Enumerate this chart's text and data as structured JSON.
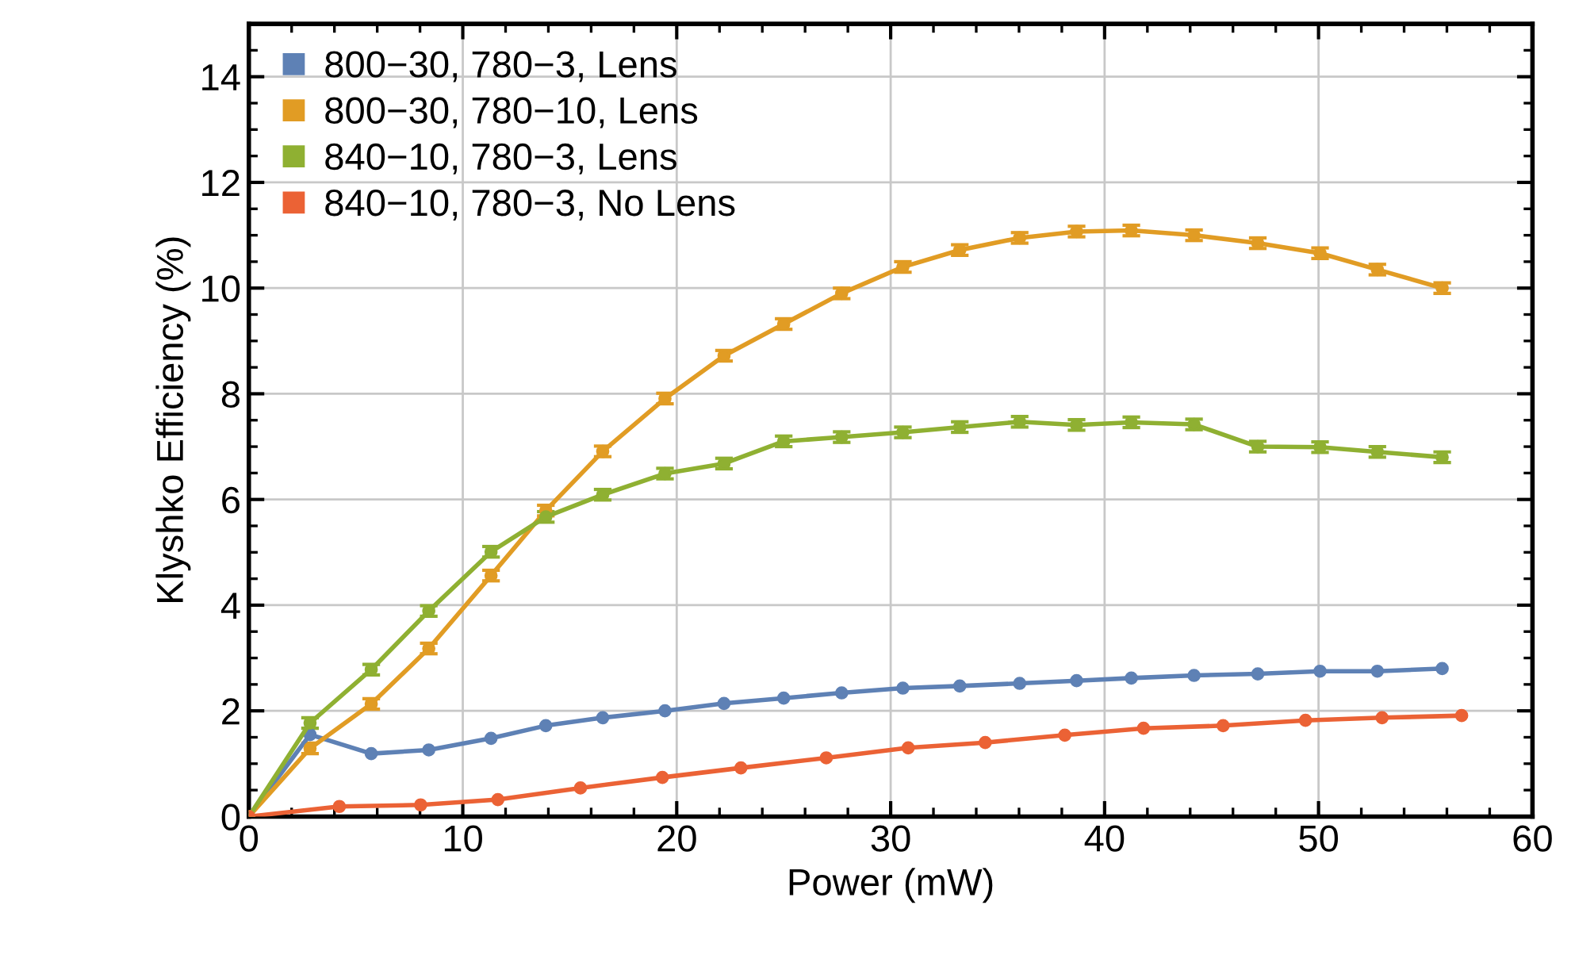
{
  "chart_data": {
    "type": "line",
    "xlabel": "Power (mW)",
    "ylabel": "Klyshko Efficiency (%)",
    "xlim": [
      0,
      60
    ],
    "xticks": [
      0,
      10,
      20,
      30,
      40,
      50,
      60
    ],
    "ylim": [
      0,
      15
    ],
    "yticks": [
      0,
      2,
      4,
      6,
      8,
      10,
      12,
      14
    ],
    "grid": true,
    "legend": "top left",
    "marker": "circle",
    "line_style": "solid",
    "series": [
      {
        "name": "800−30, 780−3, Lens",
        "color": "#5e81b5",
        "x": [
          0,
          2.86,
          5.72,
          8.41,
          11.32,
          13.88,
          16.54,
          19.45,
          22.21,
          25.0,
          27.71,
          30.57,
          33.23,
          36.03,
          38.69,
          41.25,
          44.18,
          47.16,
          50.07,
          52.75,
          55.78
        ],
        "values": [
          0,
          1.55,
          1.19,
          1.26,
          1.48,
          1.72,
          1.87,
          2.0,
          2.14,
          2.24,
          2.34,
          2.43,
          2.47,
          2.52,
          2.57,
          2.62,
          2.67,
          2.7,
          2.75,
          2.75,
          2.8
        ]
      },
      {
        "name": "800−30, 780−10, Lens",
        "color": "#e19c24",
        "x": [
          0,
          2.86,
          5.72,
          8.41,
          11.32,
          13.88,
          16.54,
          19.45,
          22.21,
          25.0,
          27.71,
          30.57,
          33.23,
          36.03,
          38.69,
          41.25,
          44.18,
          47.16,
          50.07,
          52.75,
          55.78
        ],
        "values": [
          0,
          1.29,
          2.13,
          3.18,
          4.56,
          5.79,
          6.91,
          7.91,
          8.72,
          9.32,
          9.9,
          10.4,
          10.72,
          10.95,
          11.07,
          11.09,
          11.0,
          10.85,
          10.66,
          10.35,
          10.0
        ],
        "errors": [
          null,
          0.1,
          0.1,
          0.1,
          0.1,
          0.1,
          0.1,
          0.1,
          0.1,
          0.1,
          0.1,
          0.1,
          0.1,
          0.1,
          0.1,
          0.1,
          0.1,
          0.1,
          0.1,
          0.1,
          0.1
        ]
      },
      {
        "name": "840−10, 780−3, Lens",
        "color": "#8fb032",
        "x": [
          0,
          2.86,
          5.72,
          8.41,
          11.32,
          13.88,
          16.54,
          19.45,
          22.21,
          25.0,
          27.71,
          30.57,
          33.23,
          36.03,
          38.69,
          41.25,
          44.18,
          47.16,
          50.07,
          52.75,
          55.78
        ],
        "values": [
          0,
          1.77,
          2.78,
          3.89,
          5.01,
          5.67,
          6.09,
          6.49,
          6.68,
          7.1,
          7.18,
          7.27,
          7.37,
          7.47,
          7.41,
          7.46,
          7.42,
          7.0,
          6.99,
          6.9,
          6.8
        ],
        "errors": [
          null,
          0.1,
          0.1,
          0.1,
          0.1,
          0.1,
          0.1,
          0.1,
          0.1,
          0.1,
          0.1,
          0.1,
          0.1,
          0.1,
          0.1,
          0.1,
          0.1,
          0.1,
          0.1,
          0.1,
          0.1
        ]
      },
      {
        "name": "840−10, 780−3, No Lens",
        "color": "#eb6235",
        "x": [
          0,
          4.23,
          8.03,
          11.64,
          15.5,
          19.33,
          23.0,
          26.99,
          30.82,
          34.42,
          38.14,
          41.82,
          45.54,
          49.39,
          52.97,
          56.69
        ],
        "values": [
          0,
          0.19,
          0.22,
          0.32,
          0.54,
          0.74,
          0.92,
          1.11,
          1.3,
          1.4,
          1.54,
          1.67,
          1.72,
          1.82,
          1.87,
          1.91
        ]
      }
    ]
  }
}
